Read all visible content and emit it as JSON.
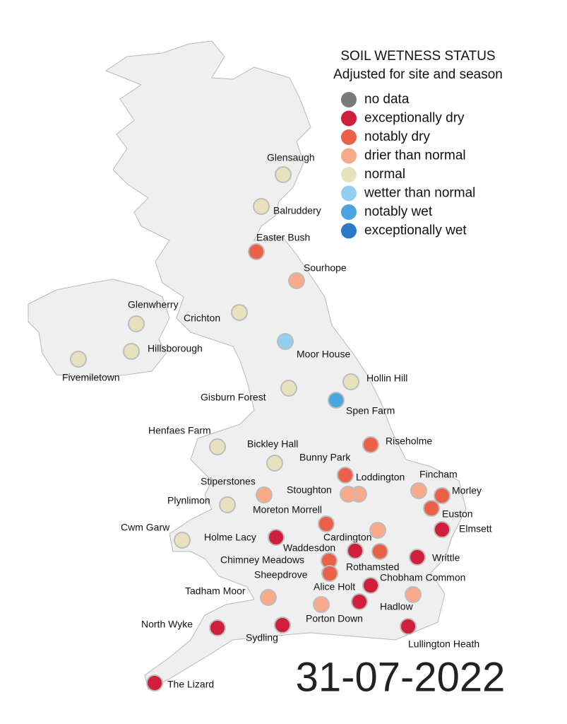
{
  "legend": {
    "title": "SOIL WETNESS STATUS",
    "subtitle": "Adjusted for site and season",
    "items": [
      {
        "label": "no data",
        "color": "#7a7a7a"
      },
      {
        "label": "exceptionally dry",
        "color": "#d01f3c"
      },
      {
        "label": "notably dry",
        "color": "#ea6049"
      },
      {
        "label": "drier than normal",
        "color": "#f8a98a"
      },
      {
        "label": "normal",
        "color": "#e8e1bd"
      },
      {
        "label": "wetter than normal",
        "color": "#93cfef"
      },
      {
        "label": "notably wet",
        "color": "#4aa6de"
      },
      {
        "label": "exceptionally wet",
        "color": "#2e78c8"
      }
    ]
  },
  "sites": [
    {
      "name": "Glensaugh",
      "status": "normal"
    },
    {
      "name": "Balruddery",
      "status": "normal"
    },
    {
      "name": "Easter Bush",
      "status": "notably dry"
    },
    {
      "name": "Sourhope",
      "status": "drier than normal"
    },
    {
      "name": "Glenwherry",
      "status": "normal"
    },
    {
      "name": "Crichton",
      "status": "normal"
    },
    {
      "name": "Hillsborough",
      "status": "normal"
    },
    {
      "name": "Fivemiletown",
      "status": "normal"
    },
    {
      "name": "Moor House",
      "status": "wetter than normal"
    },
    {
      "name": "Hollin Hill",
      "status": "normal"
    },
    {
      "name": "Gisburn Forest",
      "status": "normal"
    },
    {
      "name": "Spen Farm",
      "status": "notably wet"
    },
    {
      "name": "Henfaes Farm",
      "status": "normal"
    },
    {
      "name": "Bickley Hall",
      "status": "normal"
    },
    {
      "name": "Riseholme",
      "status": "notably dry"
    },
    {
      "name": "Bunny Park",
      "status": "notably dry"
    },
    {
      "name": "Loddington",
      "status": "drier than normal"
    },
    {
      "name": "Stoughton",
      "status": "drier than normal"
    },
    {
      "name": "Fincham",
      "status": "drier than normal"
    },
    {
      "name": "Morley",
      "status": "notably dry"
    },
    {
      "name": "Stiperstones",
      "status": "drier than normal"
    },
    {
      "name": "Plynlimon",
      "status": "normal"
    },
    {
      "name": "Euston",
      "status": "notably dry"
    },
    {
      "name": "Moreton Morrell",
      "status": "notably dry"
    },
    {
      "name": "Cardington",
      "status": "drier than normal"
    },
    {
      "name": "Elmsett",
      "status": "exceptionally dry"
    },
    {
      "name": "Cwm Garw",
      "status": "normal"
    },
    {
      "name": "Holme Lacy",
      "status": "exceptionally dry"
    },
    {
      "name": "Waddesdon",
      "status": "exceptionally dry"
    },
    {
      "name": "Rothamsted",
      "status": "notably dry"
    },
    {
      "name": "Writtle",
      "status": "exceptionally dry"
    },
    {
      "name": "Chimney Meadows",
      "status": "notably dry"
    },
    {
      "name": "Sheepdrove",
      "status": "notably dry"
    },
    {
      "name": "Chobham Common",
      "status": "exceptionally dry"
    },
    {
      "name": "Alice Holt",
      "status": "exceptionally dry"
    },
    {
      "name": "Hadlow",
      "status": "drier than normal"
    },
    {
      "name": "Tadham Moor",
      "status": "drier than normal"
    },
    {
      "name": "Porton Down",
      "status": "drier than normal"
    },
    {
      "name": "Sydling",
      "status": "exceptionally dry"
    },
    {
      "name": "North Wyke",
      "status": "exceptionally dry"
    },
    {
      "name": "Lullington Heath",
      "status": "exceptionally dry"
    },
    {
      "name": "The Lizard",
      "status": "exceptionally dry"
    }
  ],
  "date": "31-07-2022"
}
